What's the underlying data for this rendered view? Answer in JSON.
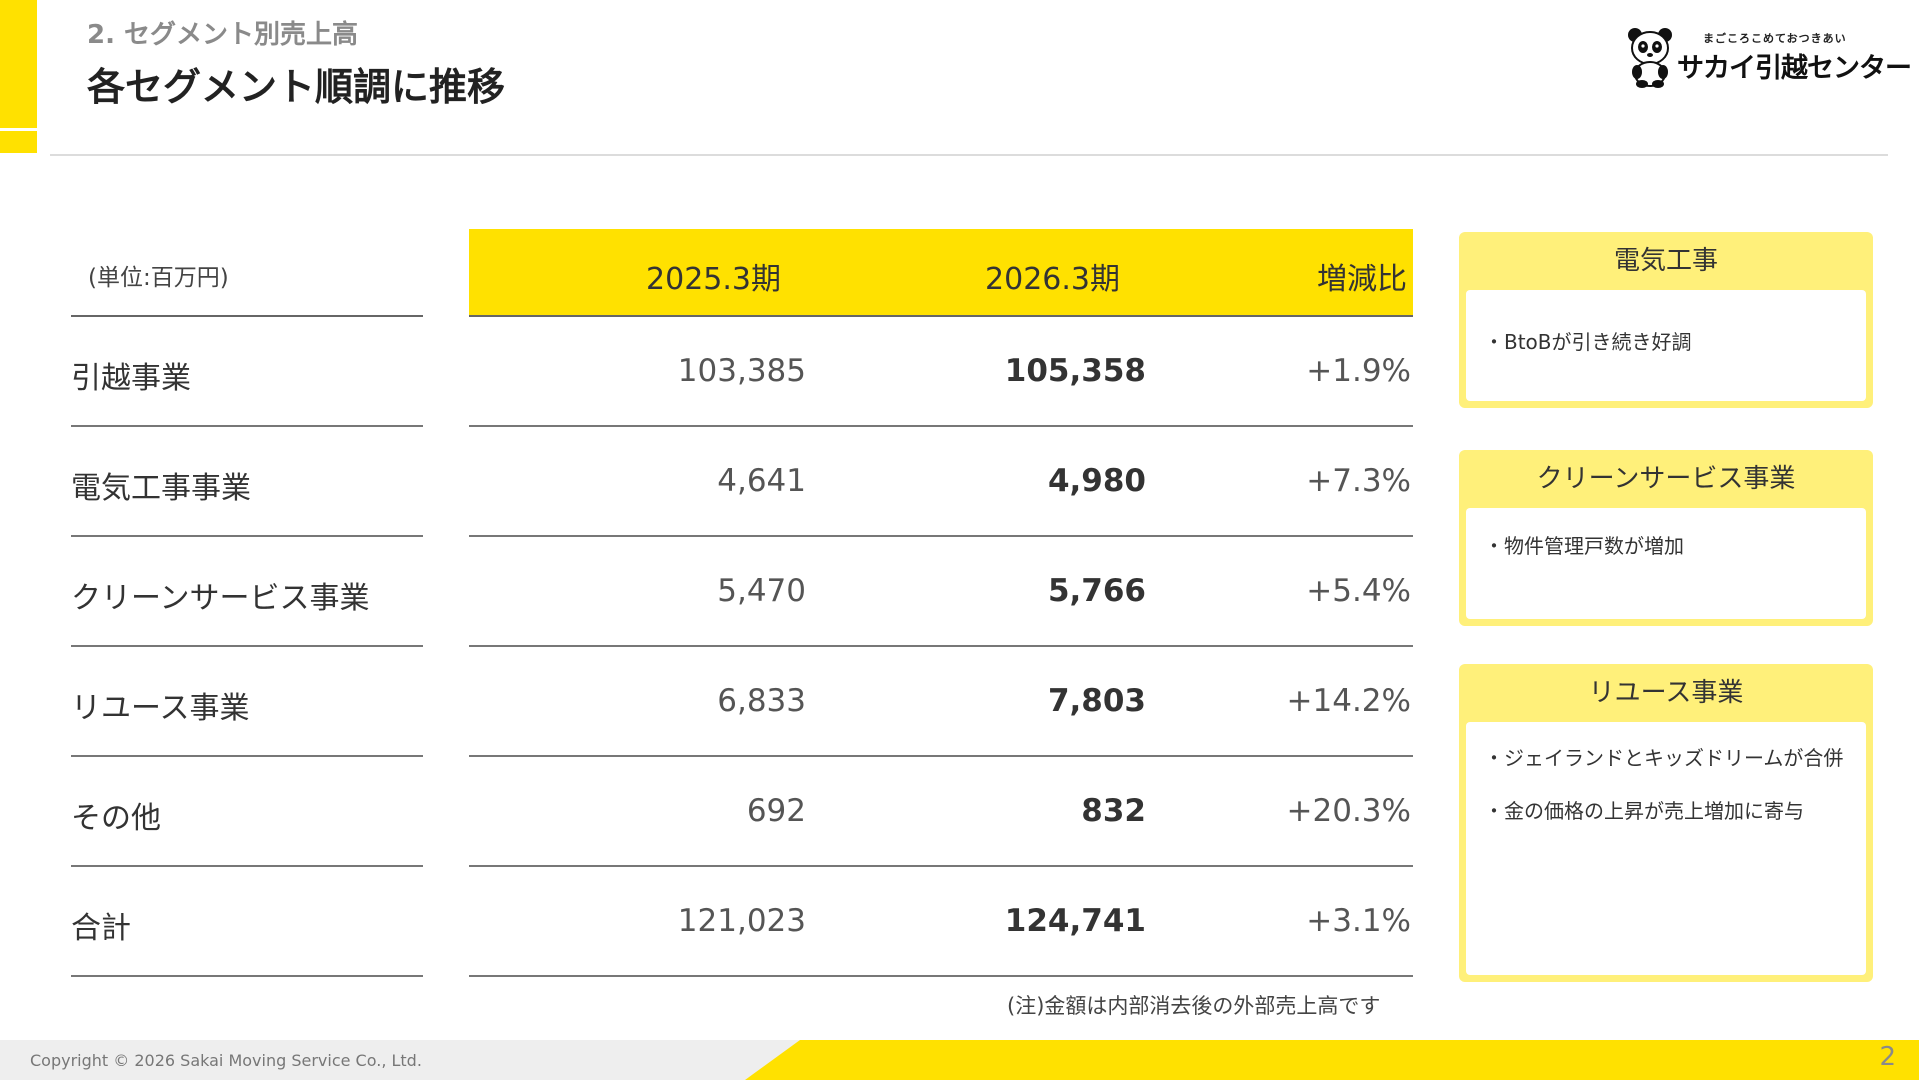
{
  "header": {
    "section_label": "2.  セグメント別売上高",
    "title": "各セグメント順調に推移"
  },
  "logo": {
    "tagline": "まごころこめておつきあい",
    "name": "サカイ引越センター",
    "mascot_icon": "panda-mascot-icon"
  },
  "table": {
    "unit": "(単位:百万円)",
    "columns": [
      "2025.3期",
      "2026.3期",
      "増減比"
    ],
    "rows": [
      {
        "label": "引越事業",
        "prev": "103,385",
        "curr": "105,358",
        "diff": "+1.9%"
      },
      {
        "label": "電気工事事業",
        "prev": "4,641",
        "curr": "4,980",
        "diff": "+7.3%"
      },
      {
        "label": "クリーンサービス事業",
        "prev": "5,470",
        "curr": "5,766",
        "diff": "+5.4%"
      },
      {
        "label": "リユース事業",
        "prev": "6,833",
        "curr": "7,803",
        "diff": "+14.2%"
      },
      {
        "label": "その他",
        "prev": "692",
        "curr": "832",
        "diff": "+20.3%"
      },
      {
        "label": "合計",
        "prev": "121,023",
        "curr": "124,741",
        "diff": "+3.1%"
      }
    ],
    "note": "(注)金額は内部消去後の外部売上高です"
  },
  "cards": [
    {
      "title": "電気工事",
      "items": [
        "・BtoBが引き続き好調"
      ]
    },
    {
      "title": "クリーンサービス事業",
      "items": [
        "・物件管理戸数が増加"
      ]
    },
    {
      "title": "リユース事業",
      "items": [
        "・ジェイランドとキッズドリームが合併",
        "・金の価格の上昇が売上増加に寄与"
      ]
    }
  ],
  "footer": {
    "copyright": "Copyright © 2026 Sakai Moving Service Co., Ltd.",
    "page_number": "2"
  },
  "colors": {
    "accent_yellow": "#FFE100",
    "card_yellow": "#FFF07A"
  }
}
